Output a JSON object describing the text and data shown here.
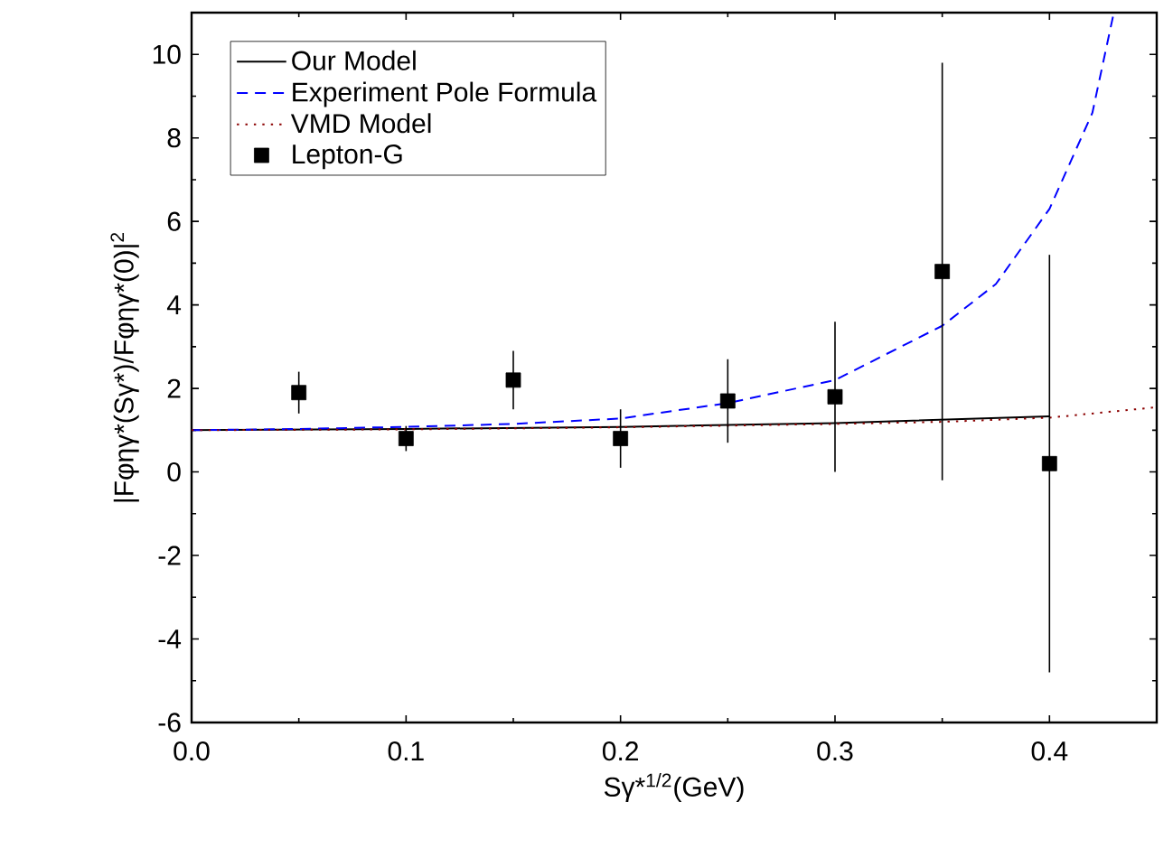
{
  "chart_data": {
    "type": "line",
    "xlabel": "Sγ*$^{1/2}$(GeV)",
    "ylabel": "|Fφηγ*(Sγ*)/Fφηγ*(0)|$^{2}$",
    "xlim": [
      0,
      0.45
    ],
    "ylim": [
      -6,
      11
    ],
    "xticks": [
      {
        "value": 0,
        "label": "0.0"
      },
      0.1,
      0.2,
      0.3,
      0.4
    ],
    "yticks": [
      -6,
      -4,
      -2,
      0,
      2,
      4,
      6,
      8,
      10
    ],
    "legend": "top left",
    "grid": false,
    "series": [
      {
        "name": "Our Model",
        "color": "#000000",
        "line_style": "solid",
        "x": [
          0,
          0.1,
          0.2,
          0.3,
          0.4
        ],
        "values": [
          1.0,
          1.03,
          1.08,
          1.17,
          1.33
        ]
      },
      {
        "name": "Experiment Pole Formula",
        "color": "#0000ff",
        "line_style": "dashed",
        "x": [
          0,
          0.05,
          0.1,
          0.15,
          0.2,
          0.25,
          0.3,
          0.35,
          0.375,
          0.4,
          0.42,
          0.43
        ],
        "values": [
          1.0,
          1.03,
          1.08,
          1.15,
          1.28,
          1.65,
          2.2,
          3.5,
          4.5,
          6.3,
          8.6,
          11
        ]
      },
      {
        "name": "VMD Model",
        "color": "#8b0000",
        "line_style": "dotted",
        "x": [
          0,
          0.1,
          0.2,
          0.3,
          0.35,
          0.4,
          0.45
        ],
        "values": [
          1.0,
          1.02,
          1.07,
          1.15,
          1.2,
          1.3,
          1.55
        ]
      },
      {
        "name": "Lepton-G",
        "type": "scatter",
        "marker": "square",
        "color": "#000000",
        "x": [
          0.05,
          0.1,
          0.15,
          0.2,
          0.25,
          0.3,
          0.35,
          0.4
        ],
        "values": [
          1.9,
          0.8,
          2.2,
          0.8,
          1.7,
          1.8,
          4.8,
          0.2
        ],
        "errors": [
          0.5,
          0.3,
          0.7,
          0.7,
          1.0,
          1.8,
          5.0,
          5.0
        ]
      }
    ]
  }
}
